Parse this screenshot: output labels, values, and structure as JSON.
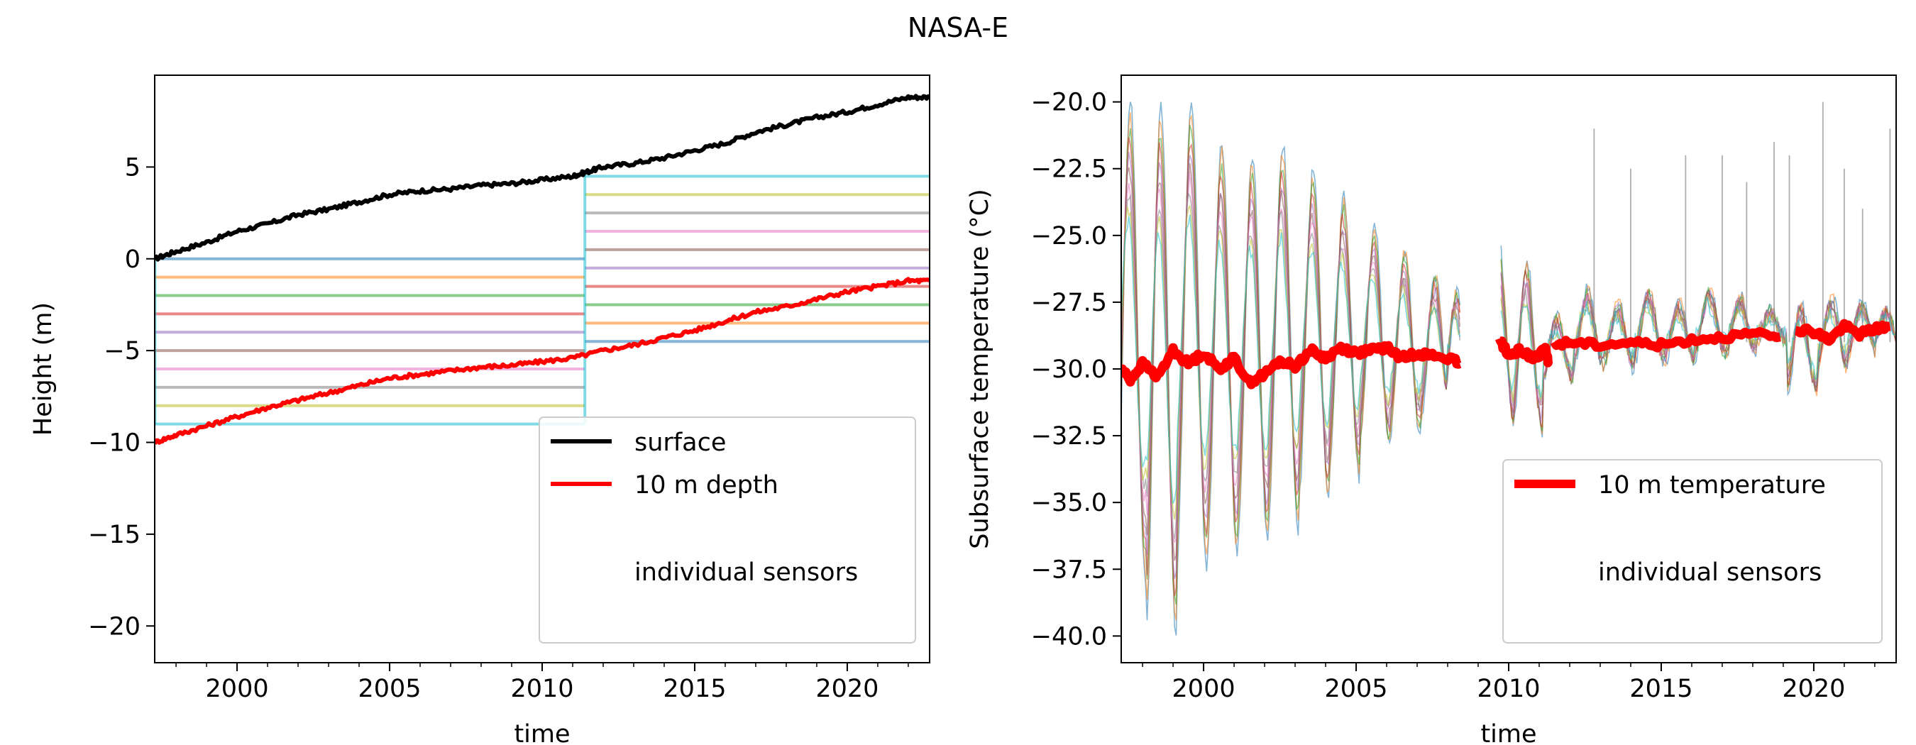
{
  "figure": {
    "title": "NASA-E"
  },
  "chart_data": [
    {
      "type": "line",
      "xlabel": "time",
      "ylabel": "Height (m)",
      "xlim": [
        1997.3,
        2022.7
      ],
      "ylim": [
        -22,
        10
      ],
      "xticks": [
        2000,
        2005,
        2010,
        2015,
        2020
      ],
      "xtick_labels": [
        "2000",
        "2005",
        "2010",
        "2015",
        "2020"
      ],
      "yticks": [
        5,
        0,
        -5,
        -10,
        -15,
        -20
      ],
      "ytick_labels": [
        "5",
        "0",
        "−5",
        "−10",
        "−15",
        "−20"
      ],
      "grid": false,
      "legend": {
        "placement": "bottom-right",
        "entries": [
          {
            "label": "surface",
            "color": "#000000"
          },
          {
            "label": "10 m depth",
            "color": "#ff0000"
          },
          {
            "label": "individual sensors",
            "color": ""
          }
        ]
      },
      "series": [
        {
          "name": "surface",
          "color": "#000000",
          "x": [
            1997.3,
            1998,
            1999,
            2000,
            2001,
            2002,
            2003,
            2004,
            2005,
            2006,
            2007,
            2008,
            2009,
            2010,
            2011,
            2011.4,
            2012,
            2013,
            2014,
            2015,
            2016,
            2017,
            2018,
            2019,
            2020,
            2021,
            2022,
            2022.7
          ],
          "y": [
            0.0,
            0.4,
            0.9,
            1.5,
            1.9,
            2.4,
            2.7,
            3.1,
            3.5,
            3.7,
            3.8,
            4.0,
            4.1,
            4.3,
            4.5,
            4.7,
            5.0,
            5.2,
            5.5,
            5.9,
            6.3,
            6.9,
            7.3,
            7.7,
            8.0,
            8.4,
            8.8,
            8.8
          ]
        },
        {
          "name": "10 m depth",
          "color": "#ff0000",
          "x": [
            1997.3,
            1998,
            1999,
            2000,
            2001,
            2002,
            2003,
            2004,
            2005,
            2006,
            2007,
            2008,
            2009,
            2010,
            2011,
            2012,
            2013,
            2014,
            2015,
            2016,
            2017,
            2018,
            2019,
            2020,
            2021,
            2022,
            2022.7
          ],
          "y": [
            -10.0,
            -9.6,
            -9.1,
            -8.6,
            -8.1,
            -7.7,
            -7.3,
            -6.9,
            -6.5,
            -6.3,
            -6.1,
            -5.9,
            -5.8,
            -5.6,
            -5.4,
            -5.0,
            -4.7,
            -4.3,
            -3.9,
            -3.4,
            -2.9,
            -2.6,
            -2.2,
            -1.8,
            -1.5,
            -1.2,
            -1.2
          ]
        }
      ],
      "sensor_levels": {
        "segment1": {
          "x": [
            1997.3,
            2011.4
          ],
          "levels": [
            0,
            -1,
            -2,
            -3,
            -4,
            -5,
            -6,
            -7,
            -8,
            -9
          ]
        },
        "segment2": {
          "x": [
            2011.4,
            2022.7
          ],
          "levels": [
            4.5,
            3.5,
            2.5,
            1.5,
            0.5,
            -0.5,
            -1.5,
            -2.5,
            -3.5,
            -4.5
          ]
        },
        "colors": [
          "#1f77b4",
          "#ff7f0e",
          "#2ca02c",
          "#d62728",
          "#9467bd",
          "#8c564b",
          "#e377c2",
          "#7f7f7f",
          "#bcbd22",
          "#17becf"
        ]
      }
    },
    {
      "type": "line",
      "xlabel": "time",
      "ylabel": "Subsurface temperature (°C)",
      "xlim": [
        1997.3,
        2022.7
      ],
      "ylim": [
        -41,
        -19
      ],
      "xticks": [
        2000,
        2005,
        2010,
        2015,
        2020
      ],
      "xtick_labels": [
        "2000",
        "2005",
        "2010",
        "2015",
        "2020"
      ],
      "yticks": [
        -20,
        -22.5,
        -25,
        -27.5,
        -30,
        -32.5,
        -35,
        -37.5,
        -40
      ],
      "ytick_labels": [
        "−20.0",
        "−22.5",
        "−25.0",
        "−27.5",
        "−30.0",
        "−32.5",
        "−35.0",
        "−37.5",
        "−40.0"
      ],
      "grid": false,
      "legend": {
        "placement": "bottom-right",
        "entries": [
          {
            "label": "10 m temperature",
            "color": "#ff0000"
          },
          {
            "label": "individual sensors",
            "color": ""
          }
        ]
      },
      "series": [
        {
          "name": "10 m temperature",
          "color": "#ff0000",
          "segments": [
            {
              "x": [
                1997.3,
                1997.6,
                1998.0,
                1998.5,
                1999.0,
                1999.5,
                2000.0,
                2000.5,
                2001.0,
                2001.5,
                2002.0,
                2002.5,
                2003.0,
                2003.5,
                2004.0,
                2004.5,
                2005.0,
                2005.5,
                2006.0,
                2006.5,
                2007.0,
                2007.5,
                2008.0,
                2008.4
              ],
              "y": [
                -30.0,
                -30.4,
                -29.8,
                -30.3,
                -29.3,
                -29.8,
                -29.4,
                -30.0,
                -29.6,
                -30.5,
                -30.2,
                -29.7,
                -29.9,
                -29.3,
                -29.6,
                -29.2,
                -29.4,
                -29.3,
                -29.2,
                -29.6,
                -29.4,
                -29.5,
                -29.6,
                -29.8
              ]
            },
            {
              "x": [
                2009.7,
                2010.0,
                2010.4,
                2010.8,
                2011.2,
                2011.3
              ],
              "y": [
                -28.9,
                -29.5,
                -29.3,
                -29.6,
                -29.3,
                -29.7
              ]
            },
            {
              "x": [
                2011.5,
                2012,
                2013,
                2014,
                2015,
                2016,
                2017,
                2018,
                2018.9
              ],
              "y": [
                -29.1,
                -29.0,
                -29.1,
                -29.0,
                -29.1,
                -28.9,
                -28.8,
                -28.7,
                -28.8
              ]
            },
            {
              "x": [
                2019.4,
                2020.0,
                2020.5,
                2021.0,
                2021.5,
                2022.0,
                2022.5
              ],
              "y": [
                -28.5,
                -28.6,
                -28.9,
                -28.4,
                -28.7,
                -28.5,
                -28.4
              ]
            }
          ]
        }
      ],
      "sensors": {
        "count": 10,
        "colors": [
          "#1f77b4",
          "#ff7f0e",
          "#2ca02c",
          "#d62728",
          "#9467bd",
          "#8c564b",
          "#e377c2",
          "#7f7f7f",
          "#bcbd22",
          "#17becf"
        ],
        "seasonal_peaks": [
          {
            "x": 1997.6,
            "max": -20.0,
            "min": -38.0
          },
          {
            "x": 1998.6,
            "max": -20.0,
            "min": -40.0
          },
          {
            "x": 1999.6,
            "max": -20.0,
            "min": -37.5
          },
          {
            "x": 2000.6,
            "max": -21.5,
            "min": -37.0
          },
          {
            "x": 2001.6,
            "max": -22.0,
            "min": -36.5
          },
          {
            "x": 2002.6,
            "max": -21.5,
            "min": -36.0
          },
          {
            "x": 2003.6,
            "max": -22.5,
            "min": -35.0
          },
          {
            "x": 2004.6,
            "max": -23.5,
            "min": -34.0
          },
          {
            "x": 2005.6,
            "max": -24.5,
            "min": -33.0
          },
          {
            "x": 2006.6,
            "max": -25.5,
            "min": -32.5
          },
          {
            "x": 2007.6,
            "max": -26.5,
            "min": -32.0
          },
          {
            "x": 2008.3,
            "max": -27.0,
            "min": -32.0
          },
          {
            "x": 2009.7,
            "max": -25.5,
            "min": -32.5
          },
          {
            "x": 2010.6,
            "max": -26.0,
            "min": -32.5
          },
          {
            "x": 2011.6,
            "max": -28.0,
            "min": -30.5
          },
          {
            "x": 2012.6,
            "max": -27.0,
            "min": -30.0
          },
          {
            "x": 2013.6,
            "max": -27.5,
            "min": -30.0
          },
          {
            "x": 2014.6,
            "max": -27.0,
            "min": -29.8
          },
          {
            "x": 2015.6,
            "max": -27.5,
            "min": -29.8
          },
          {
            "x": 2016.6,
            "max": -27.0,
            "min": -29.5
          },
          {
            "x": 2017.6,
            "max": -27.3,
            "min": -29.5
          },
          {
            "x": 2018.6,
            "max": -27.8,
            "min": -29.0
          },
          {
            "x": 2019.6,
            "max": -27.5,
            "min": -31.0
          },
          {
            "x": 2020.6,
            "max": -27.3,
            "min": -30.0
          },
          {
            "x": 2021.6,
            "max": -27.5,
            "min": -29.5
          },
          {
            "x": 2022.4,
            "max": -27.8,
            "min": -29.2
          }
        ],
        "spikes": [
          {
            "x": 2012.8,
            "y": -21.0
          },
          {
            "x": 2014.0,
            "y": -22.5
          },
          {
            "x": 2015.8,
            "y": -22.0
          },
          {
            "x": 2017.0,
            "y": -22.0
          },
          {
            "x": 2017.8,
            "y": -23.0
          },
          {
            "x": 2018.7,
            "y": -21.5
          },
          {
            "x": 2019.2,
            "y": -22.0
          },
          {
            "x": 2020.3,
            "y": -20.0
          },
          {
            "x": 2021.0,
            "y": -22.5
          },
          {
            "x": 2021.6,
            "y": -24.0
          },
          {
            "x": 2022.5,
            "y": -21.0
          }
        ],
        "gap": [
          2008.4,
          2009.7
        ]
      }
    }
  ]
}
